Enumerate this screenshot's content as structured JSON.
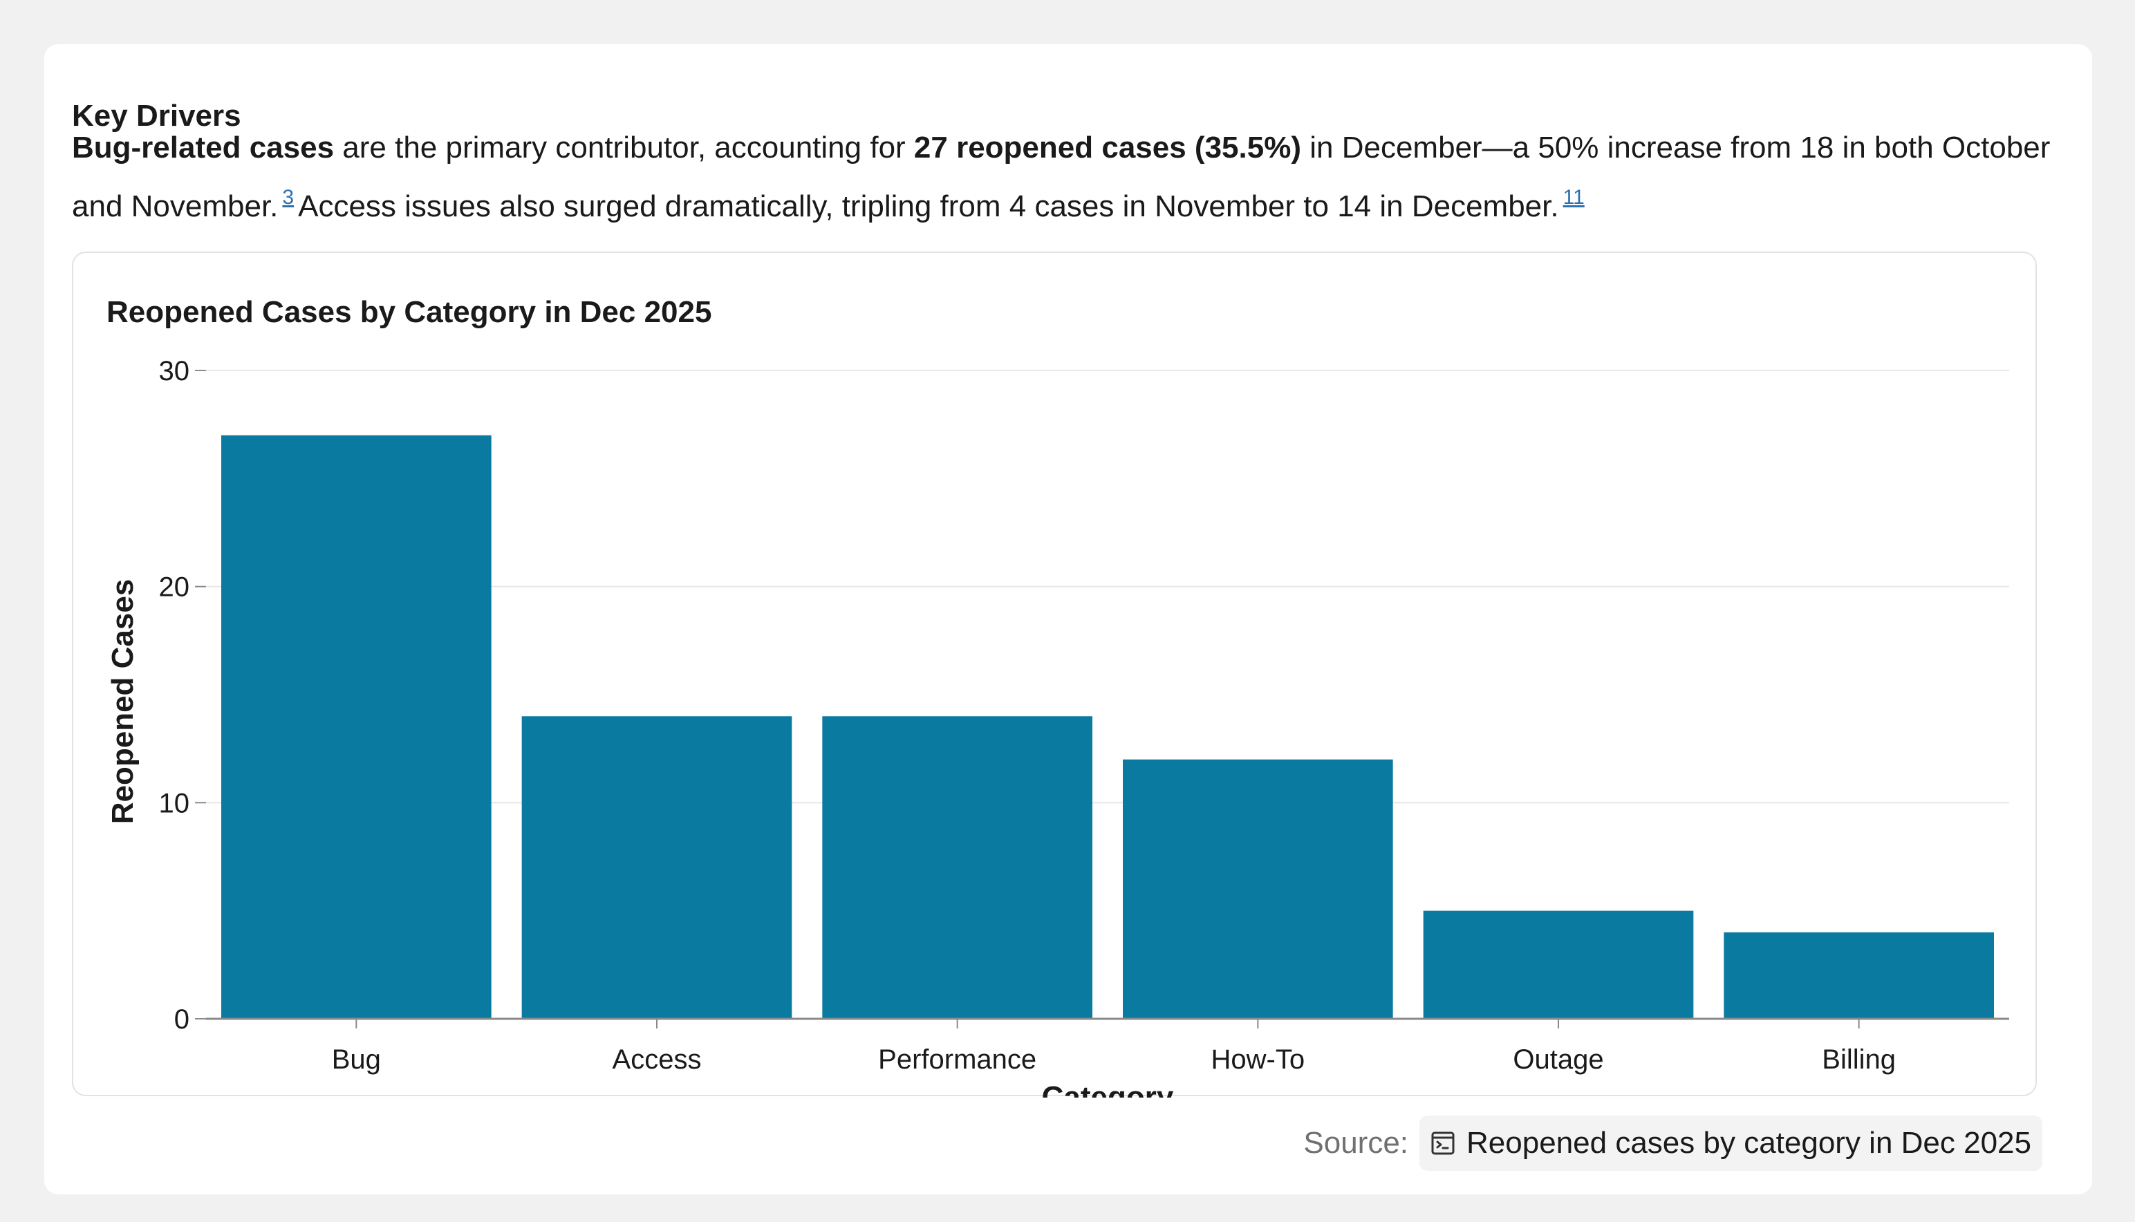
{
  "section": {
    "title": "Key Drivers"
  },
  "summary": {
    "part1_bold": "Bug-related cases",
    "part2": " are the primary contributor, accounting for ",
    "part3_bold": "27 reopened cases (35.5%)",
    "part4": " in December—a 50% increase from 18 in both October and November.",
    "ref1": "3",
    "part5": "Access issues also surged dramatically, tripling from 4 cases in November to 14 in December.",
    "ref2": "11"
  },
  "source": {
    "label": "Source:",
    "link_text": "Reopened cases by category in Dec 2025",
    "icon": "terminal-doc-icon"
  },
  "colors": {
    "bar": "#0b7aa0",
    "grid": "#e6e6e6",
    "axis": "#8a8a8a",
    "link": "#2a6fb0"
  },
  "chart_data": {
    "type": "bar",
    "title": "Reopened Cases by Category in Dec 2025",
    "xlabel": "Category",
    "ylabel": "Reopened Cases",
    "categories": [
      "Bug",
      "Access",
      "Performance",
      "How-To",
      "Outage",
      "Billing"
    ],
    "values": [
      27,
      14,
      14,
      12,
      5,
      4
    ],
    "ylim": [
      0,
      30
    ],
    "yticks": [
      0,
      10,
      20,
      30
    ],
    "grid": true,
    "legend": "none"
  }
}
